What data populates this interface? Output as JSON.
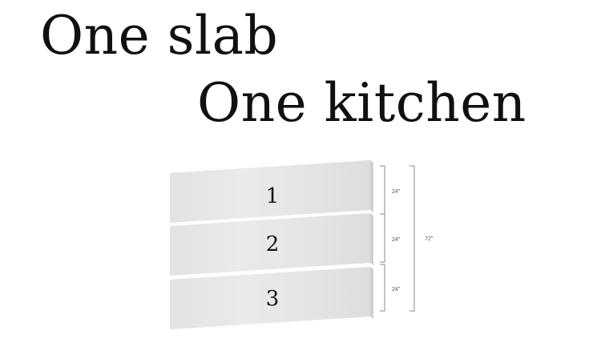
{
  "headline": {
    "line1": "One slab",
    "line2": "One kitchen"
  },
  "slabs": [
    {
      "number": "1",
      "height_label": "24\""
    },
    {
      "number": "2",
      "height_label": "24\""
    },
    {
      "number": "3",
      "height_label": "24\""
    }
  ],
  "total_height_label": "72\"",
  "colors": {
    "text": "#111111",
    "slab_light": "#ececec",
    "slab_dark": "#d6d6d6",
    "bracket": "#8a8a8a"
  }
}
